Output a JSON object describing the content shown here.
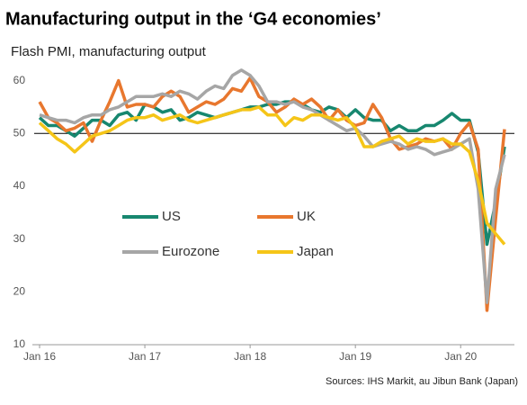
{
  "chart_data": {
    "type": "line",
    "title": "Manufacturing output in the ‘G4 economies’",
    "subtitle": "Flash PMI, manufacturing output",
    "source": "Sources: IHS Markit, au Jibun Bank (Japan)",
    "categories": [
      "Jan 16",
      null,
      null,
      null,
      null,
      null,
      null,
      null,
      null,
      null,
      null,
      null,
      "Jan 17",
      null,
      null,
      null,
      null,
      null,
      null,
      null,
      null,
      null,
      null,
      null,
      "Jan 18",
      null,
      null,
      null,
      null,
      null,
      null,
      null,
      null,
      null,
      null,
      null,
      "Jan 19",
      null,
      null,
      null,
      null,
      null,
      null,
      null,
      null,
      null,
      null,
      null,
      "Jan 20",
      null,
      null,
      null,
      null,
      null
    ],
    "ylim": [
      10,
      63
    ],
    "yticks": [
      10,
      20,
      30,
      40,
      50,
      60
    ],
    "reference_line": 50,
    "series": [
      {
        "name": "US",
        "color": "#17876f",
        "values": [
          53,
          51.5,
          51.5,
          50.5,
          49.5,
          51,
          52.5,
          52.5,
          51.5,
          53.5,
          54,
          52.5,
          55.5,
          55,
          54,
          54.5,
          52.5,
          53,
          54,
          53.5,
          53,
          53.5,
          54,
          54.5,
          55,
          55,
          55.5,
          55.5,
          56,
          56,
          55.5,
          54.5,
          54,
          55,
          54.5,
          53,
          54.5,
          53,
          52.5,
          52.5,
          50.5,
          51.5,
          50.5,
          50.5,
          51.5,
          51.5,
          52.5,
          53.8,
          52.5,
          52.5,
          46.5,
          29,
          37,
          47.5
        ]
      },
      {
        "name": "UK",
        "color": "#e8772e",
        "values": [
          56,
          53,
          52,
          50.5,
          51,
          52,
          48.5,
          52.5,
          56,
          60,
          55,
          55.5,
          55.5,
          55,
          57,
          58,
          57,
          54,
          55,
          56,
          55.5,
          56.5,
          58.5,
          58,
          60.5,
          57,
          56,
          54,
          55,
          56.5,
          55.5,
          56.5,
          55,
          52.5,
          54.5,
          52.5,
          51.5,
          52,
          55.5,
          53,
          49,
          47,
          47.5,
          48,
          49,
          48.5,
          49,
          47,
          50,
          52,
          47,
          16.5,
          34,
          50.8
        ]
      },
      {
        "name": "Eurozone",
        "color": "#a6a6a6",
        "values": [
          53.5,
          53,
          52.5,
          52.5,
          52,
          53,
          53.5,
          53.5,
          54.5,
          55,
          56,
          57,
          57,
          57,
          57.5,
          57,
          58,
          57.5,
          56.5,
          58,
          59,
          58.5,
          61,
          62,
          61,
          59,
          56,
          56,
          55.5,
          56,
          55,
          54.5,
          53.5,
          52.5,
          51.5,
          50.5,
          51,
          49.5,
          47.5,
          48,
          48.5,
          48,
          47,
          47.5,
          47,
          46,
          46.5,
          47,
          48,
          49,
          39.5,
          18,
          39.5,
          46
        ]
      },
      {
        "name": "Japan",
        "color": "#f5c518",
        "values": [
          52,
          50.5,
          49,
          48,
          46.5,
          48,
          49.5,
          50,
          50.5,
          51.5,
          52.5,
          53,
          53,
          53.5,
          52.5,
          53,
          53.5,
          52.5,
          52,
          52.5,
          53,
          53.5,
          54,
          54.5,
          54.5,
          55,
          53.5,
          53.5,
          51.5,
          53,
          52.5,
          53.5,
          53.5,
          53,
          52.5,
          53,
          51,
          47.5,
          47.5,
          48.5,
          49,
          49.5,
          48,
          49,
          48.5,
          48.5,
          49,
          48,
          48,
          46.5,
          41,
          33,
          31,
          29
        ]
      }
    ]
  }
}
